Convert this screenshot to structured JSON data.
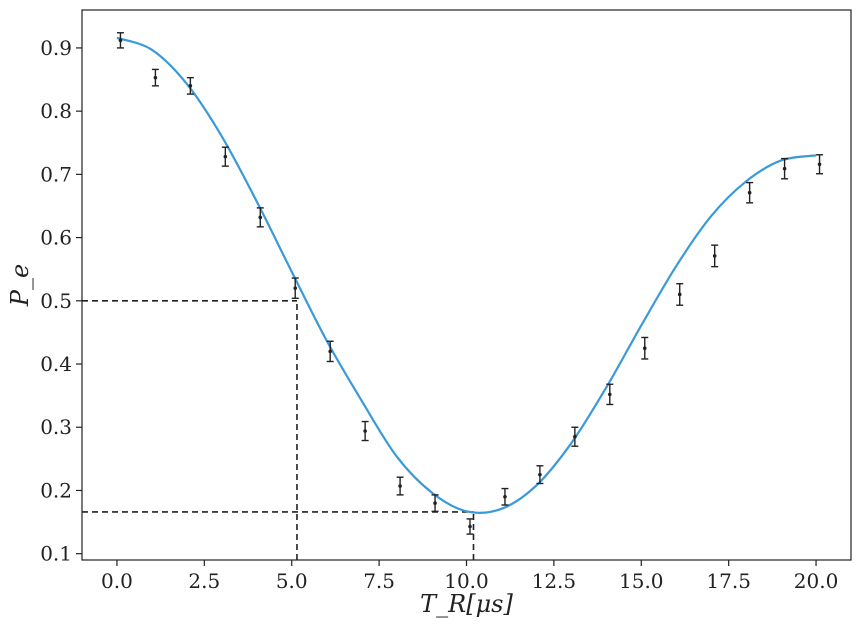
{
  "chart_data": {
    "type": "scatter",
    "xlabel": "T_R[μs]",
    "ylabel": "P_e",
    "xlim": [
      -1.0,
      21.0
    ],
    "ylim": [
      0.09,
      0.96
    ],
    "xticks": [
      "0.0",
      "2.5",
      "5.0",
      "7.5",
      "10.0",
      "12.5",
      "15.0",
      "17.5",
      "20.0"
    ],
    "xtick_values": [
      0.0,
      2.5,
      5.0,
      7.5,
      10.0,
      12.5,
      15.0,
      17.5,
      20.0
    ],
    "yticks": [
      "0.1",
      "0.2",
      "0.3",
      "0.4",
      "0.5",
      "0.6",
      "0.7",
      "0.8",
      "0.9"
    ],
    "ytick_values": [
      0.1,
      0.2,
      0.3,
      0.4,
      0.5,
      0.6,
      0.7,
      0.8,
      0.9
    ],
    "grid": false,
    "legend": "none",
    "series": [
      {
        "type": "scatter-errorbar",
        "color": "#222222",
        "x": [
          0.1,
          1.1,
          2.1,
          3.1,
          4.1,
          5.1,
          6.1,
          7.1,
          8.1,
          9.1,
          10.1,
          11.1,
          12.1,
          13.1,
          14.1,
          15.1,
          16.1,
          17.1,
          18.1,
          19.1,
          20.1
        ],
        "y": [
          0.912,
          0.853,
          0.84,
          0.728,
          0.632,
          0.52,
          0.42,
          0.294,
          0.207,
          0.18,
          0.143,
          0.19,
          0.225,
          0.285,
          0.352,
          0.425,
          0.51,
          0.571,
          0.671,
          0.709,
          0.716
        ],
        "yerr": [
          0.012,
          0.013,
          0.013,
          0.015,
          0.015,
          0.016,
          0.016,
          0.015,
          0.014,
          0.013,
          0.012,
          0.013,
          0.014,
          0.015,
          0.016,
          0.017,
          0.017,
          0.017,
          0.016,
          0.016,
          0.015
        ]
      },
      {
        "type": "line",
        "color": "#3a9ad9",
        "x": [
          0.0,
          1.0,
          2.0,
          3.0,
          4.0,
          5.0,
          6.0,
          7.0,
          8.0,
          9.0,
          10.0,
          11.0,
          12.0,
          13.0,
          14.0,
          15.0,
          16.0,
          17.0,
          18.0,
          19.0,
          20.0
        ],
        "y": [
          0.916,
          0.897,
          0.843,
          0.76,
          0.657,
          0.546,
          0.437,
          0.342,
          0.254,
          0.197,
          0.167,
          0.171,
          0.208,
          0.275,
          0.363,
          0.461,
          0.555,
          0.634,
          0.689,
          0.722,
          0.73
        ]
      }
    ],
    "annotations": [
      {
        "type": "dashed-guide",
        "color": "#222222",
        "x_from": -1.0,
        "x_to": 5.15,
        "y": 0.5
      },
      {
        "type": "dashed-guide",
        "color": "#222222",
        "x": 5.15,
        "y_from": 0.09,
        "y_to": 0.5
      },
      {
        "type": "dashed-guide",
        "color": "#222222",
        "x_from": -1.0,
        "x_to": 10.2,
        "y": 0.166
      },
      {
        "type": "dashed-guide",
        "color": "#222222",
        "x": 10.2,
        "y_from": 0.09,
        "y_to": 0.166
      }
    ]
  }
}
